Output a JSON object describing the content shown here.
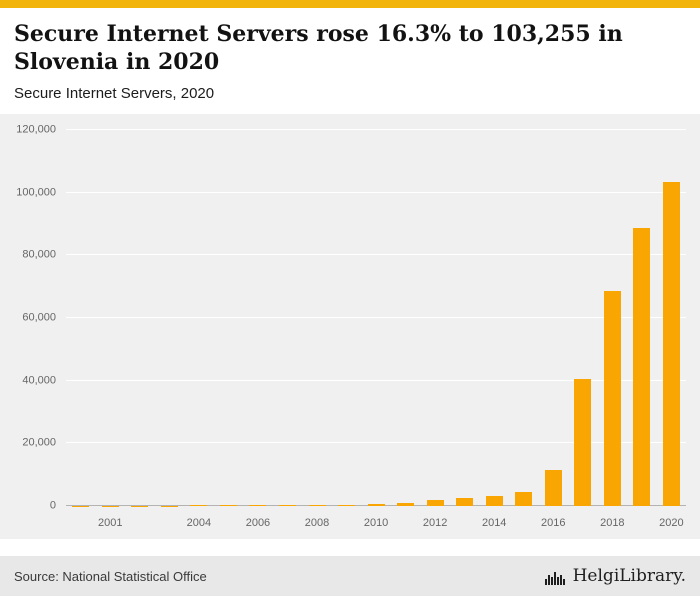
{
  "colors": {
    "accent_strip": "#F2B30B",
    "bar": "#F9A602",
    "plot_background": "#f0f0f0",
    "footer_background": "#e8e8e8"
  },
  "header": {
    "title": "Secure Internet Servers rose 16.3% to 103,255 in Slovenia in 2020",
    "subtitle": "Secure Internet Servers, 2020"
  },
  "chart_data": {
    "type": "bar",
    "title": "Secure Internet Servers, 2020",
    "categories": [
      "2000",
      "2001",
      "2002",
      "2003",
      "2004",
      "2005",
      "2006",
      "2007",
      "2008",
      "2009",
      "2010",
      "2011",
      "2012",
      "2013",
      "2014",
      "2015",
      "2016",
      "2017",
      "2018",
      "2019",
      "2020"
    ],
    "values": [
      60,
      90,
      120,
      150,
      190,
      230,
      280,
      330,
      390,
      450,
      550,
      1000,
      1900,
      2500,
      3100,
      4400,
      11600,
      40500,
      68500,
      88783,
      103255
    ],
    "x_tick_labels": [
      "2001",
      "2004",
      "2006",
      "2008",
      "2010",
      "2012",
      "2014",
      "2016",
      "2018",
      "2020"
    ],
    "y_ticks": [
      {
        "value": 0,
        "label": "0"
      },
      {
        "value": 20000,
        "label": "20,000"
      },
      {
        "value": 40000,
        "label": "40,000"
      },
      {
        "value": 60000,
        "label": "60,000"
      },
      {
        "value": 80000,
        "label": "80,000"
      },
      {
        "value": 100000,
        "label": "100,000"
      },
      {
        "value": 120000,
        "label": "120,000"
      }
    ],
    "ylim": [
      0,
      120000
    ],
    "xlabel": "",
    "ylabel": "",
    "grid": true,
    "legend": "none",
    "bar_color": "#F9A602"
  },
  "footer": {
    "source": "Source: National Statistical Office",
    "brand": "HelgiLibrary."
  }
}
